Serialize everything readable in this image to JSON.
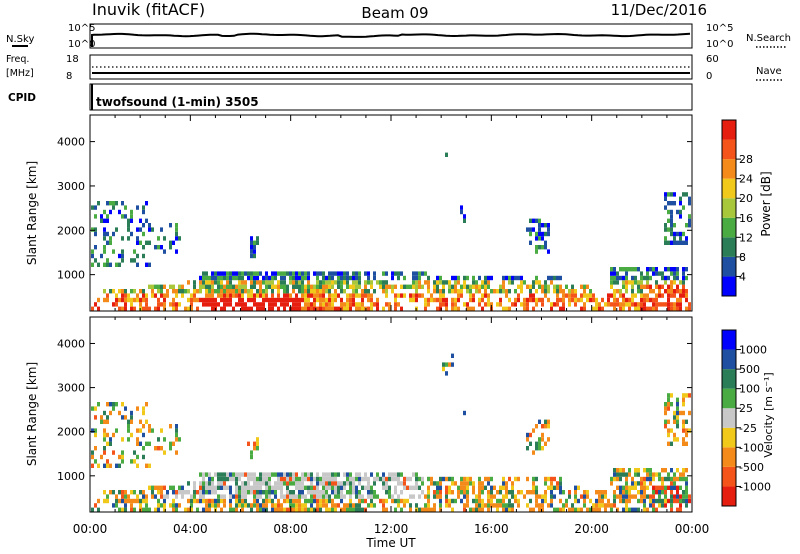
{
  "header": {
    "station": "Inuvik (fitACF)",
    "beam": "Beam 09",
    "date": "11/Dec/2016"
  },
  "strip": {
    "nsky_label": "N.Sky",
    "nsearch_label": "N.Search",
    "noise_ticks": [
      "10^5",
      "10^0"
    ],
    "freq_label_1": "Freq.",
    "freq_label_2": "[MHz]",
    "freq_ticks": [
      "18",
      "8"
    ],
    "nave_label": "Nave",
    "nave_ticks": [
      "60",
      "0"
    ],
    "cpid_label": "CPID",
    "cpid_value": "twofsound (1-min) 3505"
  },
  "colors": {
    "power": [
      "#0000ff",
      "#1f4fa0",
      "#2b7d57",
      "#4bab43",
      "#a9c73a",
      "#f0c91b",
      "#f48a1a",
      "#f4541a",
      "#e51e10"
    ],
    "velocity": [
      "#e51e10",
      "#f4541a",
      "#f48a1a",
      "#f0c91b",
      "#c8c8c8",
      "#4bab43",
      "#2b7d57",
      "#1f4fa0",
      "#0000ff"
    ]
  },
  "chart_data": [
    {
      "type": "heatmap",
      "ylabel": "Slant Range [km]",
      "xlabel": "Time UT",
      "x_ticks": [
        "00:00",
        "04:00",
        "08:00",
        "12:00",
        "16:00",
        "20:00",
        "00:00"
      ],
      "y_ticks": [
        "1000",
        "2000",
        "3000",
        "4000"
      ],
      "ylim": [
        180,
        4600
      ],
      "colorbar_label": "Power [dB]",
      "colorbar_ticks": [
        "4",
        "8",
        "12",
        "16",
        "20",
        "24",
        "28"
      ],
      "scale_range": [
        0,
        30
      ]
    },
    {
      "type": "heatmap",
      "ylabel": "Slant Range [km]",
      "xlabel": "Time UT",
      "x_ticks": [
        "00:00",
        "04:00",
        "08:00",
        "12:00",
        "16:00",
        "20:00",
        "00:00"
      ],
      "y_ticks": [
        "1000",
        "2000",
        "3000",
        "4000"
      ],
      "ylim": [
        180,
        4600
      ],
      "colorbar_label": "Velocity [m s⁻¹]",
      "colorbar_ticks": [
        "1000",
        "500",
        "100",
        "25",
        "-25",
        "-100",
        "-500",
        "-1000"
      ]
    }
  ]
}
